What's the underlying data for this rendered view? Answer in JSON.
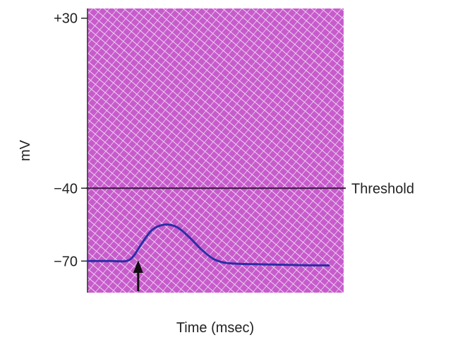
{
  "chart_data": {
    "type": "line",
    "title": "",
    "xlabel": "Time (msec)",
    "ylabel": "mV",
    "ylim": [
      -83,
      34
    ],
    "xlim": [
      0,
      100
    ],
    "yticks": [
      {
        "value": 30,
        "label": "+30"
      },
      {
        "value": -40,
        "label": "−40"
      },
      {
        "value": -70,
        "label": "−70"
      }
    ],
    "grid": false,
    "x_tick_labels_shown": false,
    "series": [
      {
        "x": [
          0,
          10,
          16,
          19,
          23,
          27,
          32,
          37,
          42,
          47,
          52,
          56,
          60,
          65,
          70,
          80,
          90,
          100
        ],
        "y": [
          -70,
          -70,
          -70,
          -68,
          -62,
          -57,
          -55,
          -56,
          -60,
          -65,
          -69,
          -70.5,
          -71,
          -71.2,
          -71.3,
          -71.5,
          -71.7,
          -71.8
        ],
        "color": "#2a2ea6"
      }
    ],
    "annotations": {
      "threshold": {
        "value": -40,
        "label": "Threshold",
        "color": "#3a1440"
      },
      "stimulus_arrow": {
        "x": 21
      }
    },
    "background_color": "#c85bcc",
    "hatch_color": "#ecd4f2"
  }
}
